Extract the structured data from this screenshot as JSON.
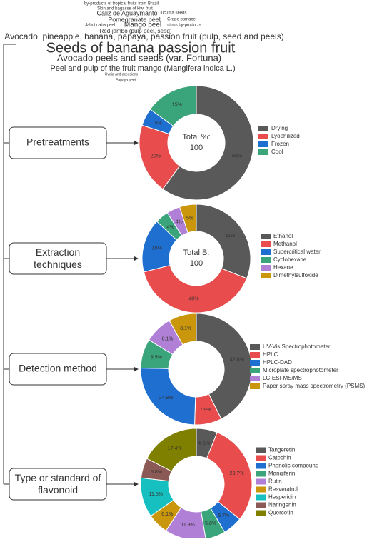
{
  "word_cloud": [
    "by-products of tropical fruits from Brazil",
    "Skin and bagasse of kiwi fruit",
    "Caliz de Aguaymanto",
    "lucuma seeds",
    "Pomegranate peel",
    "Grape pomace",
    "Jaboticaba peel",
    "Mango peel",
    "citrus by-products",
    "Red-jambo (pulp peel, seed)",
    "Avocado, pineapple, banana, papaya, passion fruit (pulp, seed and peels)",
    "Seeds of banana passion fruit",
    "Avocado peels and seeds (var. Fortuna)",
    "Peel and pulp of the fruit mango (Mangifera indica L.)",
    "Uvaia and accesions",
    "Papaya peel"
  ],
  "stages": [
    "Pretreatments",
    "Extraction techniques",
    "Detection method",
    "Type or standard of flavonoid"
  ],
  "chart_data": [
    {
      "type": "donut",
      "center_label": "Total %:",
      "center_value": 100,
      "categories": [
        "Drying",
        "Lyophilized",
        "Frozen",
        "Cool"
      ],
      "values": [
        60,
        20,
        5,
        15
      ],
      "value_labels": [
        "60%",
        "20%",
        "5%",
        "15%"
      ],
      "colors": [
        "#595959",
        "#e84c4c",
        "#1f6fd1",
        "#3aa57a"
      ]
    },
    {
      "type": "donut",
      "center_label": "Total B:",
      "center_value": 100,
      "categories": [
        "Ethanol",
        "Methanol",
        "Supercritical water",
        "Cyclohexane",
        "Hexane",
        "Dimethylsulfoxide"
      ],
      "values": [
        31,
        40,
        16,
        4,
        4,
        5
      ],
      "value_labels": [
        "31%",
        "40%",
        "16%",
        "4%",
        "4%",
        "5%"
      ],
      "colors": [
        "#595959",
        "#e84c4c",
        "#1f6fd1",
        "#3aa57a",
        "#b07fd6",
        "#c9960c"
      ]
    },
    {
      "type": "donut",
      "categories": [
        "UV-Vis Spectrophotometer",
        "HPLC",
        "HPLC-DAD",
        "Microplate spectrophotometer",
        "LC-ESI-MS/MS",
        "Paper spray mass spectrometry (PSMS)"
      ],
      "values": [
        42.6,
        7.9,
        24.8,
        8.5,
        8.1,
        8.1
      ],
      "value_labels": [
        "42.6%",
        "7.9%",
        "24.8%",
        "8.5%",
        "8.1%",
        "8.1%"
      ],
      "colors": [
        "#595959",
        "#e84c4c",
        "#1f6fd1",
        "#3aa57a",
        "#b07fd6",
        "#c9960c"
      ]
    },
    {
      "type": "donut",
      "categories": [
        "Tangeretin",
        "Catechin",
        "Phenolic compound",
        "Mangiferin",
        "Rutin",
        "Resveratrol",
        "Hesperidin",
        "Naringenin",
        "Quercetin"
      ],
      "values": [
        6.1,
        29.7,
        5.7,
        5.8,
        11.9,
        6.1,
        11.5,
        5.8,
        17.4
      ],
      "value_labels": [
        "6.1%",
        "29.7%",
        "5.7%",
        "5.8%",
        "11.9%",
        "6.1%",
        "11.5%",
        "5.8%",
        "17.4%"
      ],
      "colors": [
        "#595959",
        "#e84c4c",
        "#1f6fd1",
        "#3aa57a",
        "#b07fd6",
        "#c9960c",
        "#17c0c0",
        "#8c5a56",
        "#808000"
      ]
    }
  ]
}
